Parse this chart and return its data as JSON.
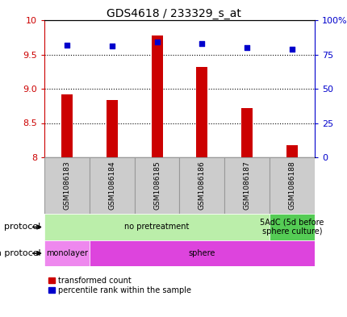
{
  "title": "GDS4618 / 233329_s_at",
  "samples": [
    "GSM1086183",
    "GSM1086184",
    "GSM1086185",
    "GSM1086186",
    "GSM1086187",
    "GSM1086188"
  ],
  "transformed_counts": [
    8.92,
    8.83,
    9.78,
    9.32,
    8.72,
    8.18
  ],
  "percentile_ranks": [
    82,
    81,
    84,
    83,
    80,
    79
  ],
  "ylim_left": [
    8.0,
    10.0
  ],
  "ylim_right": [
    0,
    100
  ],
  "yticks_left": [
    8.0,
    8.5,
    9.0,
    9.5,
    10.0
  ],
  "yticks_right": [
    0,
    25,
    50,
    75,
    100
  ],
  "bar_color": "#cc0000",
  "scatter_color": "#0000cc",
  "bar_bottom": 8.0,
  "bar_width": 0.25,
  "protocol_groups": [
    {
      "label": "no pretreatment",
      "start": 0,
      "end": 5,
      "color": "#bbeeaa"
    },
    {
      "label": "5AdC (5d before\nsphere culture)",
      "start": 5,
      "end": 6,
      "color": "#55cc55"
    }
  ],
  "growth_groups": [
    {
      "label": "monolayer",
      "start": 0,
      "end": 1,
      "color": "#ee88ee"
    },
    {
      "label": "sphere",
      "start": 1,
      "end": 6,
      "color": "#dd44dd"
    }
  ],
  "sample_box_color": "#cccccc",
  "sample_box_edge": "#999999",
  "legend_red_label": "transformed count",
  "legend_blue_label": "percentile rank within the sample",
  "protocol_label": "protocol",
  "growth_label": "growth protocol",
  "left_axis_color": "#cc0000",
  "right_axis_color": "#0000cc",
  "dotted_yticks": [
    8.5,
    9.0,
    9.5
  ]
}
